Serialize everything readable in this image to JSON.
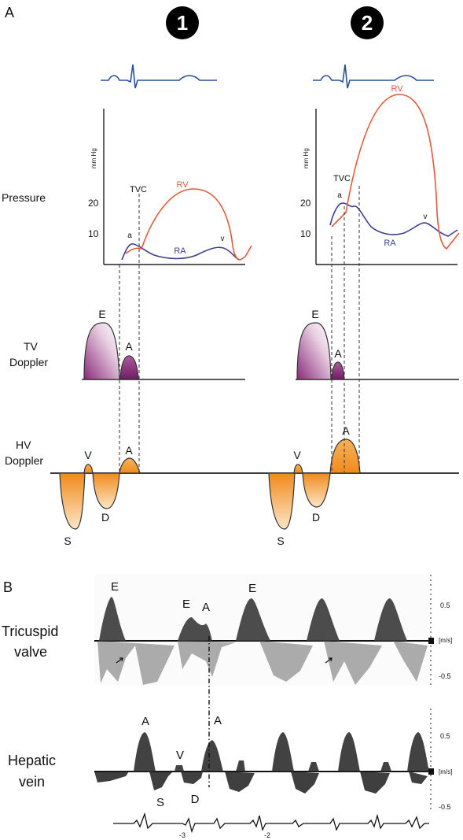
{
  "panel_a": {
    "label": "A",
    "column_1": "1",
    "column_2": "2",
    "row_pressure": "Pressure",
    "row_tv_1": "TV",
    "row_tv_2": "Doppler",
    "row_hv_1": "HV",
    "row_hv_2": "Doppler",
    "axis_unit": "mm Hg",
    "tick_20": "20",
    "tick_10": "10",
    "rv": "RV",
    "ra": "RA",
    "tvc": "TVC",
    "wave_a_small": "a",
    "wave_v_small": "v",
    "wave_E": "E",
    "wave_A": "A",
    "wave_V": "V",
    "wave_D": "D",
    "wave_S": "S"
  },
  "panel_b": {
    "label": "B",
    "row_tv_1": "Tricuspid",
    "row_tv_2": "valve",
    "row_hv_1": "Hepatic",
    "row_hv_2": "vein",
    "scale_pos": "0.5",
    "scale_neg": "-0.5",
    "scale_unit": "[m/s]",
    "wave_E": "E",
    "wave_A": "A",
    "wave_V": "V",
    "wave_S": "S",
    "wave_D": "D",
    "ecg_mark_1": "-3",
    "ecg_mark_2": "-2"
  },
  "colors": {
    "rv_curve": "#e05a3c",
    "ra_curve": "#3b3f8f",
    "ecg": "#2b4f9a",
    "tv_doppler_fill": "#8a2a7a",
    "hv_doppler_fill": "#f08a1c"
  }
}
